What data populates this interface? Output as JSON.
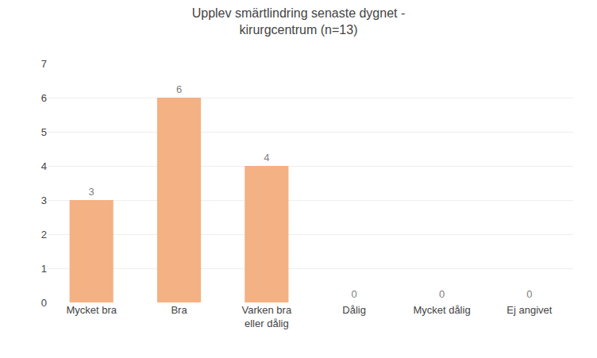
{
  "chart_data": {
    "type": "bar",
    "title": "Upplev smärtlindring senaste dygnet -\nkirurgcentrum (n=13)",
    "categories": [
      "Mycket bra",
      "Bra",
      "Varken bra\neller dålig",
      "Dålig",
      "Mycket dålig",
      "Ej angivet"
    ],
    "values": [
      3,
      6,
      4,
      0,
      0,
      0
    ],
    "color": "#F4B183",
    "ylim": [
      0,
      7
    ],
    "yticks": [
      0,
      1,
      2,
      3,
      4,
      5,
      6,
      7
    ],
    "grid": true,
    "data_labels": true
  }
}
